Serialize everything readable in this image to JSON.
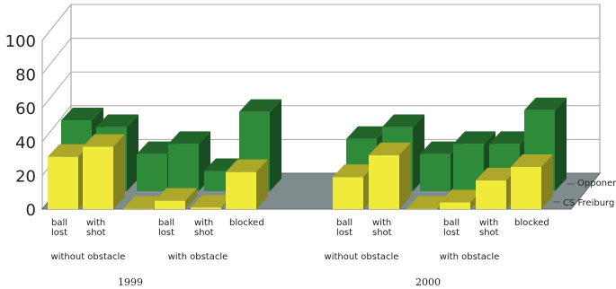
{
  "chart_data": {
    "type": "bar",
    "ylim": [
      0,
      100
    ],
    "yticks": [
      "0",
      "20",
      "40",
      "60",
      "80",
      "100"
    ],
    "grid": true,
    "legend_position": "right",
    "series": [
      {
        "name": "CS Freiburg",
        "color": "#f0ea3a",
        "values": [
          31,
          37,
          0,
          5,
          1,
          22,
          19,
          32,
          0,
          4,
          17,
          25
        ]
      },
      {
        "name": "Opponent",
        "color": "#2e8b3a",
        "values": [
          42,
          38,
          22,
          28,
          12,
          47,
          31,
          38,
          22,
          28,
          28,
          48
        ]
      }
    ],
    "categories": [
      {
        "label": [
          "ball",
          "lost"
        ]
      },
      {
        "label": [
          "with",
          "shot"
        ]
      },
      {
        "label": []
      },
      {
        "label": [
          "ball",
          "lost"
        ]
      },
      {
        "label": [
          "with",
          "shot"
        ]
      },
      {
        "label": [
          "blocked"
        ]
      },
      {
        "label": [
          "ball",
          "lost"
        ]
      },
      {
        "label": [
          "with",
          "shot"
        ]
      },
      {
        "label": []
      },
      {
        "label": [
          "ball",
          "lost"
        ]
      },
      {
        "label": [
          "with",
          "shot"
        ]
      },
      {
        "label": [
          "blocked"
        ]
      }
    ],
    "groups": [
      {
        "label": "without obstacle"
      },
      {
        "label": "with obstacle"
      },
      {
        "label": "without obstacle"
      },
      {
        "label": "with obstacle"
      }
    ],
    "years": [
      {
        "label": "1999"
      },
      {
        "label": "2000"
      }
    ]
  }
}
